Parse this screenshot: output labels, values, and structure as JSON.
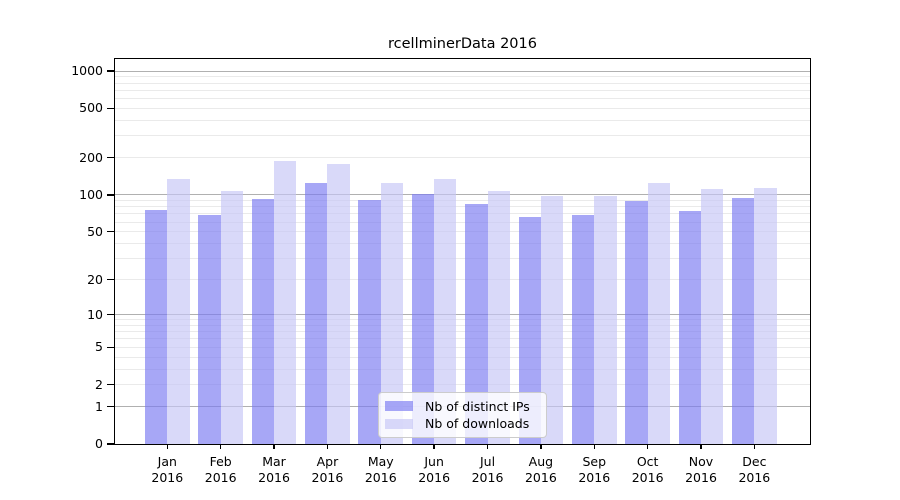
{
  "title": "rcellminerData 2016",
  "chart_data": {
    "type": "bar",
    "title": "rcellminerData 2016",
    "scale": "log1p",
    "year": "2016",
    "months": [
      "Jan",
      "Feb",
      "Mar",
      "Apr",
      "May",
      "Jun",
      "Jul",
      "Aug",
      "Sep",
      "Oct",
      "Nov",
      "Dec"
    ],
    "categories": [
      "Jan 2016",
      "Feb 2016",
      "Mar 2016",
      "Apr 2016",
      "May 2016",
      "Jun 2016",
      "Jul 2016",
      "Aug 2016",
      "Sep 2016",
      "Oct 2016",
      "Nov 2016",
      "Dec 2016"
    ],
    "series": [
      {
        "name": "Nb of distinct IPs",
        "color": "rgba(122,122,242,0.66)",
        "values": [
          75,
          69,
          93,
          125,
          91,
          102,
          85,
          66,
          68,
          89,
          74,
          95
        ]
      },
      {
        "name": "Nb of downloads",
        "color": "rgba(198,198,246,0.66)",
        "values": [
          134,
          107,
          188,
          178,
          125,
          135,
          108,
          98,
          98,
          125,
          111,
          114
        ]
      }
    ],
    "yticks": [
      0,
      1,
      2,
      5,
      10,
      20,
      50,
      100,
      200,
      500,
      1000
    ],
    "ylim": [
      0,
      1250
    ],
    "xlabel": "",
    "ylabel": "",
    "grid": {
      "major_lines": [
        1,
        10,
        100,
        1000
      ],
      "minor_multipliers": [
        2,
        3,
        4,
        5,
        6,
        7,
        8,
        9
      ],
      "major_color": "#b0b0b0",
      "minor_color": "#eaeaea"
    },
    "legend_position": "bottom-center"
  },
  "colors": {
    "background": "#ffffff",
    "spine": "#000000",
    "legend_border": "#cccccc"
  }
}
